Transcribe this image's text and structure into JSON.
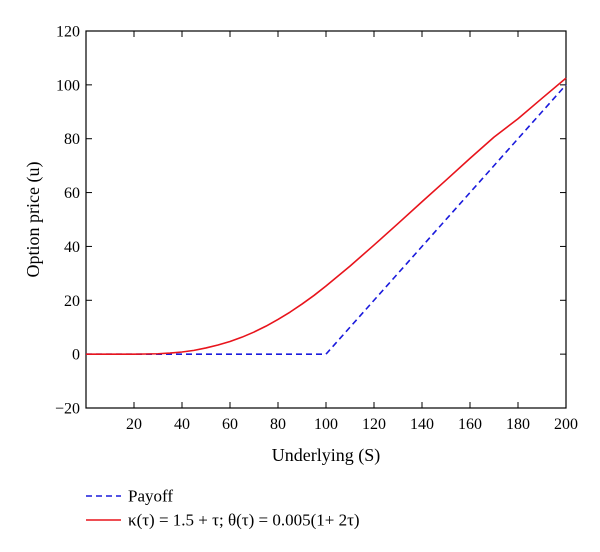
{
  "chart_data": {
    "type": "line",
    "title": "",
    "xlabel": "Underlying (S)",
    "ylabel": "Option price (u)",
    "xlim": [
      0,
      200
    ],
    "ylim": [
      -20,
      120
    ],
    "xticks": [
      20,
      40,
      60,
      80,
      100,
      120,
      140,
      160,
      180,
      200
    ],
    "yticks": [
      -20,
      0,
      20,
      40,
      60,
      80,
      100,
      120
    ],
    "xtick_labels": [
      "20",
      "40",
      "60",
      "80",
      "100",
      "120",
      "140",
      "160",
      "180",
      "200"
    ],
    "ytick_labels": [
      "−20",
      "0",
      "20",
      "40",
      "60",
      "80",
      "100",
      "120"
    ],
    "grid": false,
    "legend_position": "below plot, left",
    "series": [
      {
        "name": "Payoff",
        "color": "#1a1adc",
        "style": "dashed",
        "x": [
          0,
          100,
          200
        ],
        "y": [
          0,
          0,
          100
        ]
      },
      {
        "name": "κ(τ) = 1.5 + τ; θ(τ) = 0.005(1+ 2τ)",
        "color": "#e8141c",
        "style": "solid",
        "x": [
          0,
          20,
          25,
          30,
          35,
          40,
          45,
          50,
          55,
          60,
          65,
          70,
          75,
          80,
          85,
          90,
          95,
          100,
          110,
          120,
          130,
          140,
          150,
          160,
          170,
          180,
          190,
          200
        ],
        "y": [
          0,
          0,
          0.05,
          0.15,
          0.4,
          0.8,
          1.4,
          2.3,
          3.4,
          4.7,
          6.3,
          8.2,
          10.4,
          12.9,
          15.6,
          18.6,
          21.8,
          25.3,
          32.7,
          40.5,
          48.5,
          56.6,
          64.6,
          72.7,
          80.6,
          87.4,
          95.0,
          102.5
        ]
      }
    ]
  }
}
